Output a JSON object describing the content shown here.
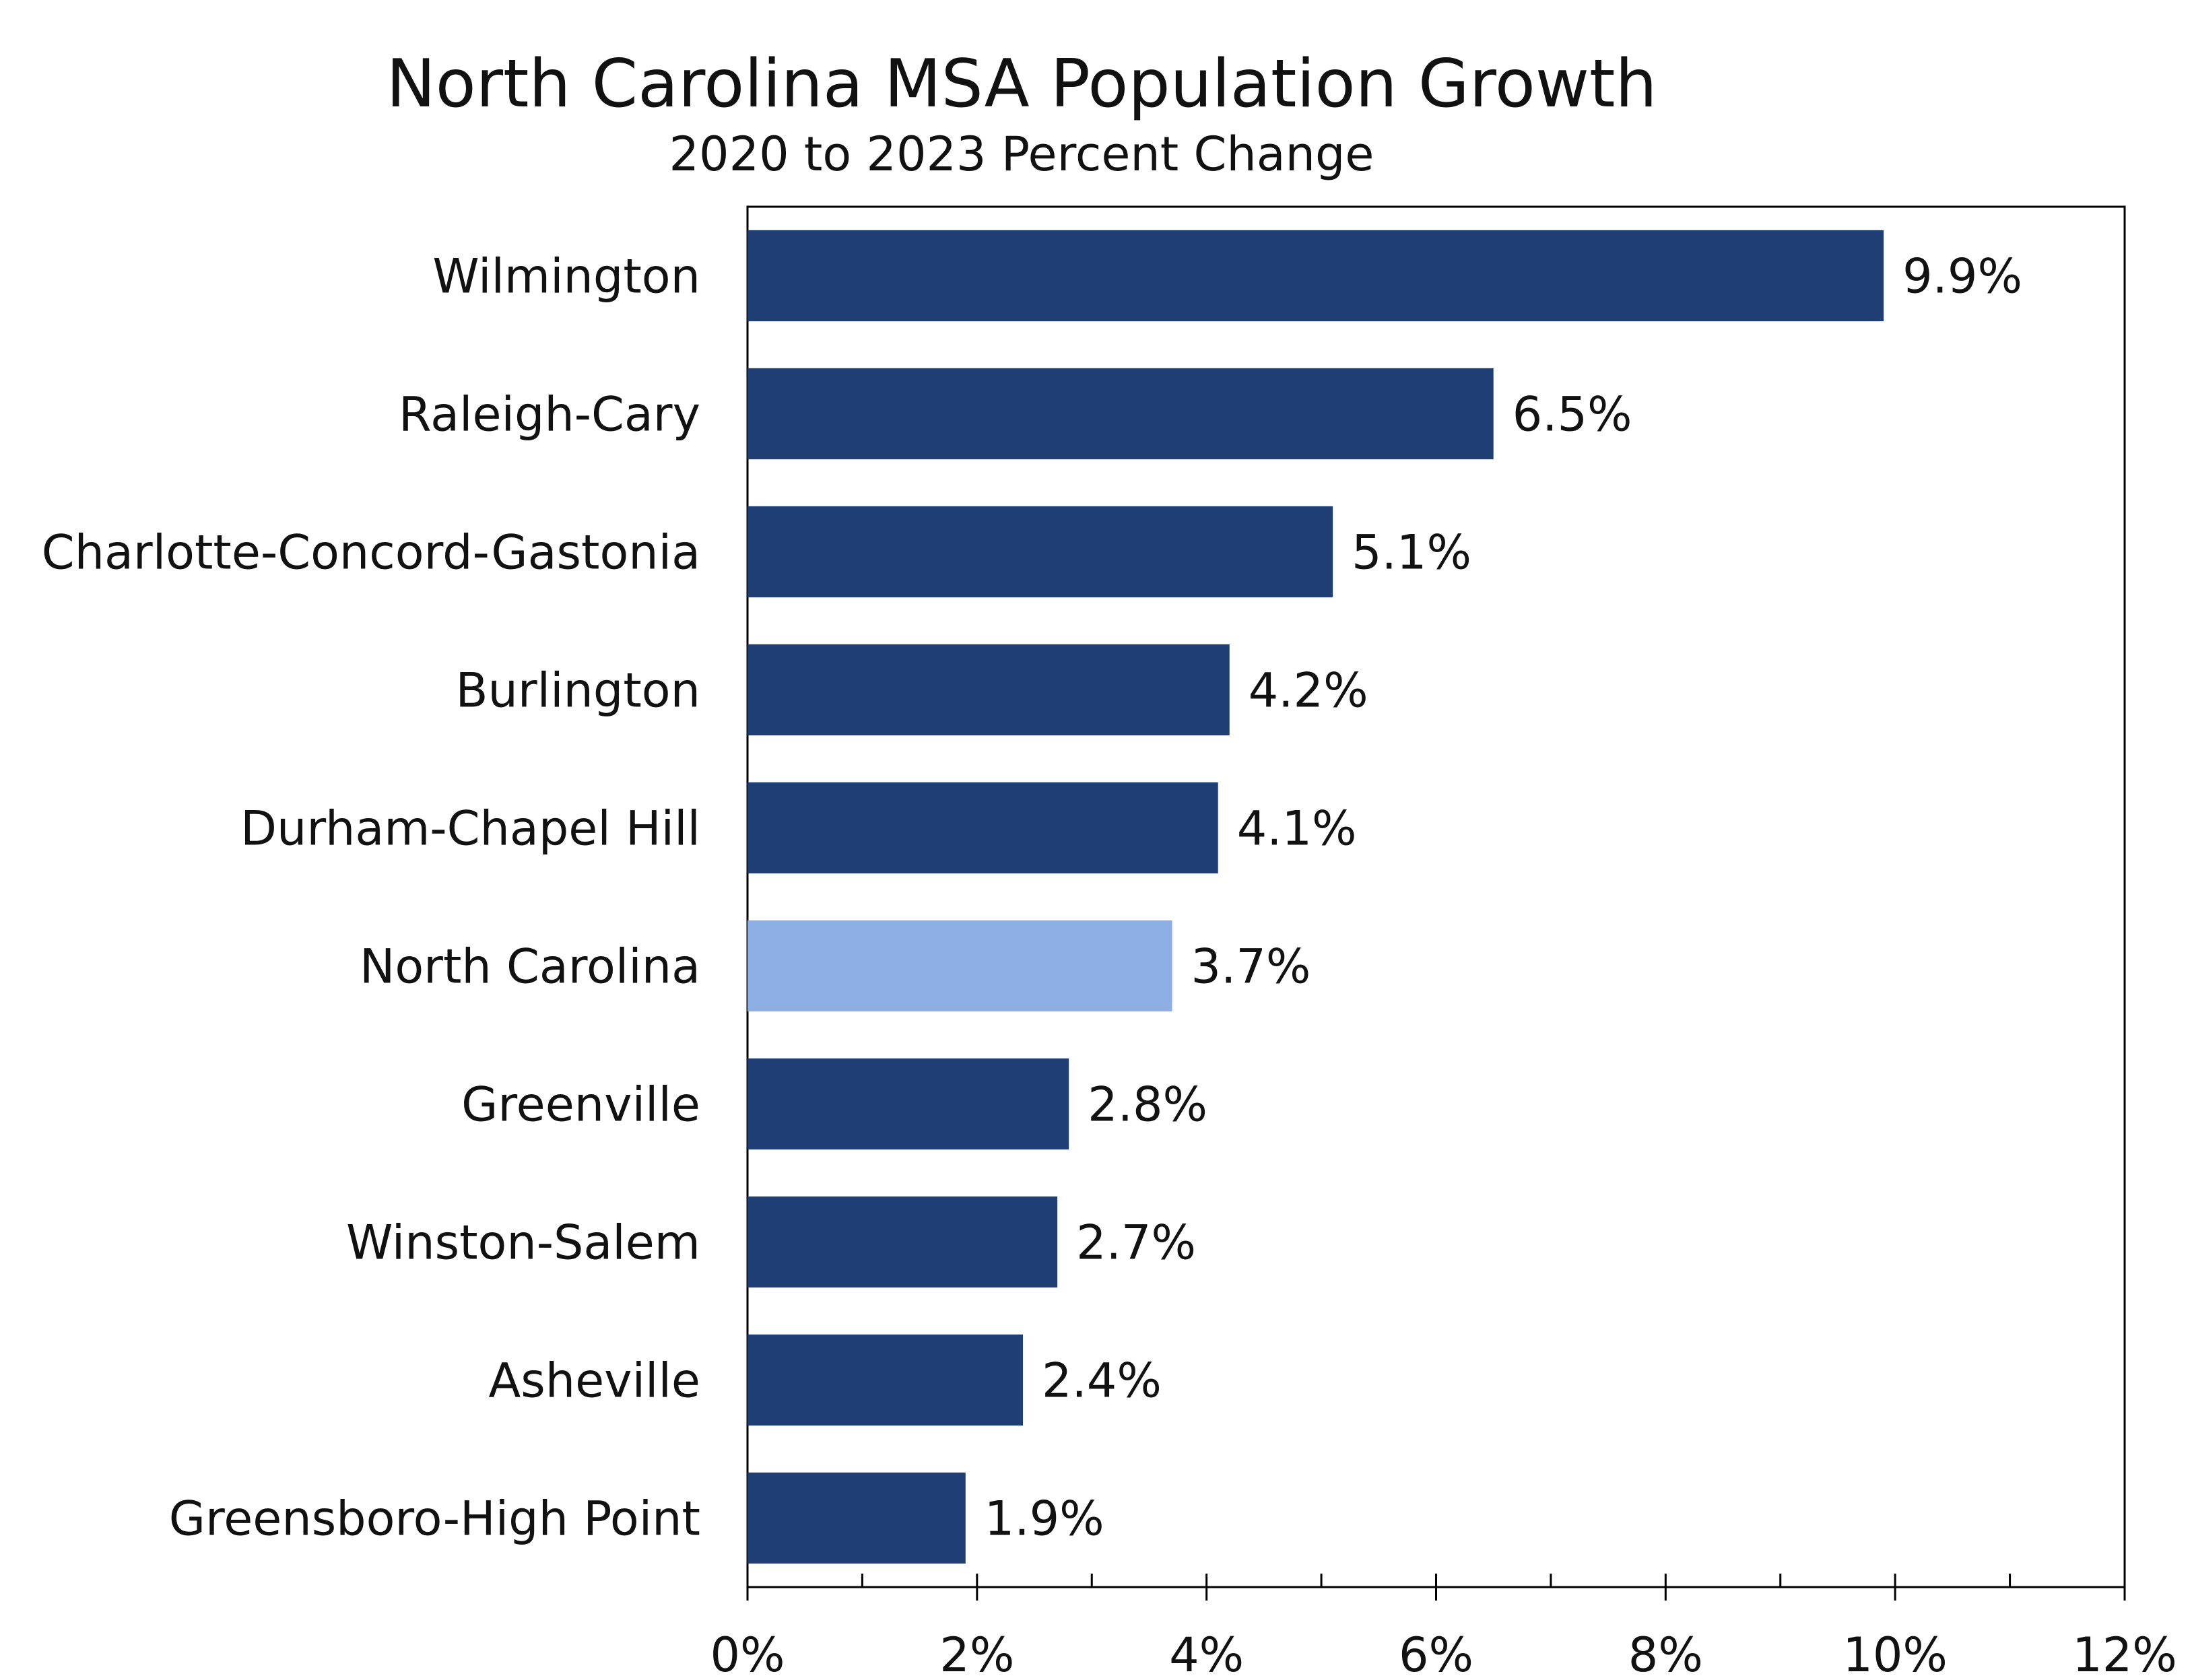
{
  "chart_data": {
    "type": "bar",
    "orientation": "horizontal",
    "title": "North Carolina MSA Population Growth",
    "subtitle": "2020 to 2023 Percent Change",
    "categories": [
      "Wilmington",
      "Raleigh-Cary",
      "Charlotte-Concord-Gastonia",
      "Burlington",
      "Durham-Chapel Hill",
      "North Carolina",
      "Greenville",
      "Winston-Salem",
      "Asheville",
      "Greensboro-High Point"
    ],
    "values": [
      9.9,
      6.5,
      5.1,
      4.2,
      4.1,
      3.7,
      2.8,
      2.7,
      2.4,
      1.9
    ],
    "value_labels": [
      "9.9%",
      "6.5%",
      "5.1%",
      "4.2%",
      "4.1%",
      "3.7%",
      "2.8%",
      "2.7%",
      "2.4%",
      "1.9%"
    ],
    "xlim": [
      0,
      12
    ],
    "x_ticks": [
      0,
      2,
      4,
      6,
      8,
      10,
      12
    ],
    "x_tick_labels": [
      "0%",
      "2%",
      "4%",
      "6%",
      "8%",
      "10%",
      "12%"
    ],
    "x_minor_step": 1,
    "grid": false,
    "colors": {
      "default": "#1f3e74",
      "highlight": "#8caee3"
    },
    "highlight_category": "North Carolina"
  }
}
